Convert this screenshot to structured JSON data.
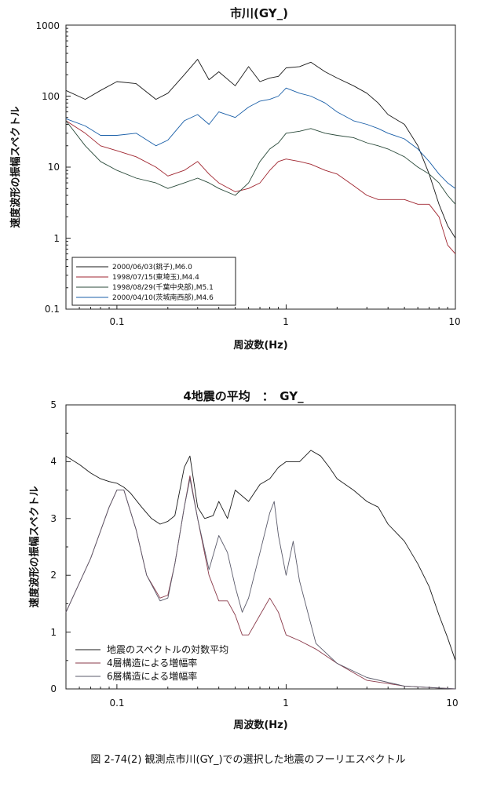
{
  "chart_data": [
    {
      "type": "line",
      "title": "市川(GY_)",
      "xlabel": "周波数(Hz)",
      "ylabel": "速度波形の振幅スペクトル",
      "xscale": "log",
      "yscale": "log",
      "xlim": [
        0.05,
        10
      ],
      "ylim": [
        0.1,
        1000
      ],
      "x_tick_labels": [
        "0.1",
        "1",
        "10"
      ],
      "y_tick_labels": [
        "0.1",
        "1",
        "10",
        "100",
        "1000"
      ],
      "legend_position": "bottom-left",
      "series": [
        {
          "name": "2000/06/03(銚子),M6.0",
          "color": "#1a1a1a",
          "x": [
            0.05,
            0.065,
            0.08,
            0.1,
            0.13,
            0.17,
            0.2,
            0.25,
            0.3,
            0.35,
            0.4,
            0.5,
            0.6,
            0.7,
            0.8,
            0.9,
            1.0,
            1.2,
            1.4,
            1.7,
            2.0,
            2.5,
            3.0,
            3.5,
            4.0,
            5.0,
            6.0,
            7.0,
            8.0,
            9.0,
            10.0
          ],
          "y": [
            120,
            90,
            120,
            160,
            150,
            90,
            110,
            200,
            330,
            170,
            220,
            140,
            260,
            160,
            180,
            190,
            250,
            260,
            300,
            220,
            180,
            140,
            110,
            80,
            55,
            40,
            20,
            8,
            3,
            1.5,
            1.0
          ]
        },
        {
          "name": "1998/07/15(東埼玉),M4.4",
          "color": "#a02630",
          "x": [
            0.05,
            0.065,
            0.08,
            0.1,
            0.13,
            0.17,
            0.2,
            0.25,
            0.3,
            0.35,
            0.4,
            0.5,
            0.6,
            0.7,
            0.8,
            0.9,
            1.0,
            1.2,
            1.4,
            1.7,
            2.0,
            2.5,
            3.0,
            3.5,
            4.0,
            5.0,
            6.0,
            7.0,
            8.0,
            9.0,
            10.0
          ],
          "y": [
            45,
            30,
            20,
            17,
            14,
            10,
            7.5,
            9,
            12,
            8,
            6,
            4.5,
            5,
            6,
            9,
            12,
            13,
            12,
            11,
            9,
            8,
            5.5,
            4,
            3.5,
            3.5,
            3.5,
            3,
            3,
            2,
            0.8,
            0.6
          ]
        },
        {
          "name": "1998/08/29(千葉中央部),M5.1",
          "color": "#2a4a3a",
          "x": [
            0.05,
            0.065,
            0.08,
            0.1,
            0.13,
            0.17,
            0.2,
            0.25,
            0.3,
            0.35,
            0.4,
            0.5,
            0.6,
            0.7,
            0.8,
            0.9,
            1.0,
            1.2,
            1.4,
            1.7,
            2.0,
            2.5,
            3.0,
            3.5,
            4.0,
            5.0,
            6.0,
            7.0,
            8.0,
            9.0,
            10.0
          ],
          "y": [
            45,
            20,
            12,
            9,
            7,
            6,
            5,
            6,
            7,
            6,
            5,
            4,
            6,
            12,
            18,
            22,
            30,
            32,
            35,
            30,
            28,
            26,
            22,
            20,
            18,
            14,
            10,
            8,
            6,
            4,
            3
          ]
        },
        {
          "name": "2000/04/10(茨城南西部),M4.6",
          "color": "#1a5fa8",
          "x": [
            0.05,
            0.065,
            0.08,
            0.1,
            0.13,
            0.17,
            0.2,
            0.25,
            0.3,
            0.35,
            0.4,
            0.5,
            0.6,
            0.7,
            0.8,
            0.9,
            1.0,
            1.2,
            1.4,
            1.7,
            2.0,
            2.5,
            3.0,
            3.5,
            4.0,
            5.0,
            6.0,
            7.0,
            8.0,
            9.0,
            10.0
          ],
          "y": [
            48,
            38,
            28,
            28,
            30,
            20,
            24,
            45,
            55,
            40,
            60,
            50,
            70,
            85,
            90,
            100,
            130,
            110,
            100,
            80,
            60,
            45,
            40,
            35,
            30,
            25,
            18,
            12,
            8,
            6,
            5
          ]
        }
      ]
    },
    {
      "type": "line",
      "title": "4地震の平均　：　GY_",
      "xlabel": "周波数(Hz)",
      "ylabel": "速度波形の振幅スペクトル",
      "xscale": "log",
      "xlim": [
        0.05,
        10
      ],
      "ylim": [
        0,
        5
      ],
      "x_tick_labels": [
        "0.1",
        "1",
        "10"
      ],
      "y_tick_labels": [
        "0",
        "1",
        "2",
        "3",
        "4",
        "5"
      ],
      "legend_position": "bottom-left",
      "series": [
        {
          "name": "地震のスペクトルの対数平均",
          "color": "#1a1a1a",
          "x": [
            0.05,
            0.06,
            0.07,
            0.08,
            0.09,
            0.1,
            0.11,
            0.12,
            0.14,
            0.16,
            0.18,
            0.2,
            0.22,
            0.25,
            0.27,
            0.3,
            0.33,
            0.37,
            0.4,
            0.45,
            0.5,
            0.6,
            0.7,
            0.8,
            0.9,
            1.0,
            1.2,
            1.4,
            1.6,
            1.8,
            2.0,
            2.5,
            3.0,
            3.5,
            4.0,
            5.0,
            6.0,
            7.0,
            8.0,
            9.0,
            10.0
          ],
          "y": [
            4.1,
            3.95,
            3.8,
            3.7,
            3.65,
            3.62,
            3.55,
            3.45,
            3.2,
            3.0,
            2.9,
            2.95,
            3.05,
            3.9,
            4.1,
            3.2,
            3.0,
            3.05,
            3.3,
            3.0,
            3.5,
            3.3,
            3.6,
            3.7,
            3.9,
            4.0,
            4.0,
            4.2,
            4.1,
            3.9,
            3.7,
            3.5,
            3.3,
            3.2,
            2.9,
            2.6,
            2.2,
            1.8,
            1.3,
            0.9,
            0.5
          ]
        },
        {
          "name": "4層構造による増幅率",
          "color": "#8a3a4a",
          "x": [
            0.05,
            0.07,
            0.09,
            0.1,
            0.11,
            0.13,
            0.15,
            0.18,
            0.2,
            0.22,
            0.25,
            0.27,
            0.3,
            0.35,
            0.4,
            0.45,
            0.5,
            0.55,
            0.6,
            0.7,
            0.8,
            0.9,
            1.0,
            1.2,
            1.5,
            2.0,
            3.0,
            5.0,
            10.0
          ],
          "y": [
            1.35,
            2.3,
            3.2,
            3.5,
            3.5,
            2.8,
            2.0,
            1.6,
            1.65,
            2.2,
            3.2,
            3.75,
            3.0,
            2.0,
            1.55,
            1.55,
            1.3,
            0.95,
            0.95,
            1.3,
            1.6,
            1.35,
            0.95,
            0.85,
            0.7,
            0.45,
            0.15,
            0.05,
            0.0
          ]
        },
        {
          "name": "6層構造による増幅率",
          "color": "#5a5a6a",
          "x": [
            0.05,
            0.07,
            0.09,
            0.1,
            0.11,
            0.13,
            0.15,
            0.18,
            0.2,
            0.22,
            0.25,
            0.27,
            0.3,
            0.35,
            0.4,
            0.45,
            0.5,
            0.55,
            0.6,
            0.7,
            0.8,
            0.85,
            0.9,
            1.0,
            1.1,
            1.2,
            1.5,
            2.0,
            3.0,
            5.0,
            10.0
          ],
          "y": [
            1.35,
            2.3,
            3.2,
            3.5,
            3.5,
            2.8,
            2.0,
            1.55,
            1.6,
            2.2,
            3.2,
            3.7,
            3.0,
            2.1,
            2.7,
            2.4,
            1.8,
            1.35,
            1.6,
            2.4,
            3.1,
            3.3,
            2.7,
            2.0,
            2.6,
            1.9,
            0.8,
            0.45,
            0.2,
            0.05,
            0.0
          ]
        }
      ]
    }
  ],
  "caption": "図 2-74(2)  観測点市川(GY_)での選択した地震のフーリエスペクトル"
}
